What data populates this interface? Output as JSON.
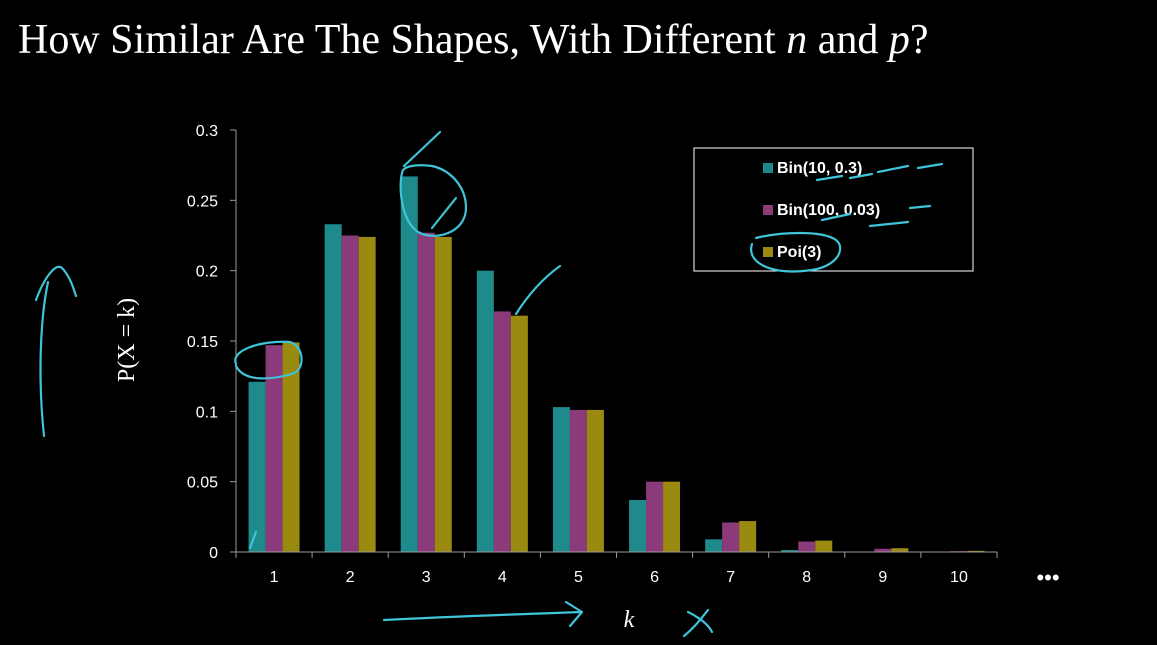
{
  "slide": {
    "title_parts": [
      "How Similar Are The Shapes, With Different ",
      "n",
      " and ",
      "p",
      "?"
    ],
    "ellipsis": "•••"
  },
  "colors": {
    "background": "#000000",
    "series": [
      "#1e8a8c",
      "#8b3a7a",
      "#9a8a10"
    ],
    "annotation": "#3fc4d8",
    "axis": "#999999"
  },
  "chart_data": {
    "type": "bar",
    "categories": [
      "1",
      "2",
      "3",
      "4",
      "5",
      "6",
      "7",
      "8",
      "9",
      "10"
    ],
    "series": [
      {
        "name": "Bin(10, 0.3)",
        "values": [
          0.121,
          0.233,
          0.267,
          0.2,
          0.103,
          0.037,
          0.009,
          0.0014,
          0.0001,
          0.0
        ]
      },
      {
        "name": "Bin(100, 0.03)",
        "values": [
          0.147,
          0.225,
          0.227,
          0.171,
          0.101,
          0.05,
          0.021,
          0.0074,
          0.0023,
          0.0006
        ]
      },
      {
        "name": "Poi(3)",
        "values": [
          0.149,
          0.224,
          0.224,
          0.168,
          0.101,
          0.05,
          0.022,
          0.0081,
          0.0027,
          0.0008
        ]
      }
    ],
    "ylim": [
      0,
      0.3
    ],
    "yticks": [
      "0",
      "0.05",
      "0.1",
      "0.15",
      "0.2",
      "0.25",
      "0.3"
    ],
    "xlabel": "k",
    "ylabel": "P(X = k)",
    "legend": "top-right",
    "grid": false
  }
}
